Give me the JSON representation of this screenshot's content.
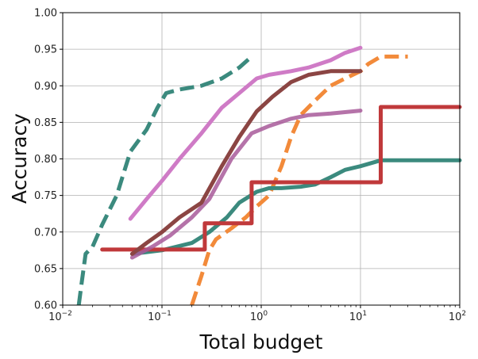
{
  "chart_data": {
    "type": "line",
    "title": "",
    "xlabel": "Total budget",
    "ylabel": "Accuracy",
    "xscale": "log",
    "xlim": [
      0.01,
      100
    ],
    "ylim": [
      0.6,
      1.0
    ],
    "grid": true,
    "x_ticks": [
      {
        "value": 0.01,
        "base": "10",
        "exp": "−2"
      },
      {
        "value": 0.1,
        "base": "10",
        "exp": "−1"
      },
      {
        "value": 1,
        "base": "10",
        "exp": "0"
      },
      {
        "value": 10,
        "base": "10",
        "exp": "1"
      },
      {
        "value": 100,
        "base": "10",
        "exp": "2"
      }
    ],
    "y_ticks": [
      {
        "value": 0.6,
        "label": "0.60"
      },
      {
        "value": 0.65,
        "label": "0.65"
      },
      {
        "value": 0.7,
        "label": "0.70"
      },
      {
        "value": 0.75,
        "label": "0.75"
      },
      {
        "value": 0.8,
        "label": "0.80"
      },
      {
        "value": 0.85,
        "label": "0.85"
      },
      {
        "value": 0.9,
        "label": "0.90"
      },
      {
        "value": 0.95,
        "label": "0.95"
      },
      {
        "value": 1.0,
        "label": "1.00"
      }
    ],
    "series": [
      {
        "color": "#3b8a7e",
        "style": "dashed",
        "opacity": 1,
        "x": [
          0.0145,
          0.0155,
          0.017,
          0.02,
          0.025,
          0.035,
          0.048,
          0.07,
          0.09,
          0.11,
          0.15,
          0.25,
          0.4,
          0.6,
          0.8
        ],
        "y": [
          0.6,
          0.63,
          0.67,
          0.68,
          0.71,
          0.75,
          0.81,
          0.84,
          0.87,
          0.89,
          0.895,
          0.9,
          0.91,
          0.925,
          0.94
        ]
      },
      {
        "color": "#f28a3a",
        "style": "dashed",
        "opacity": 1,
        "x": [
          0.2,
          0.25,
          0.3,
          0.35,
          0.5,
          0.7,
          0.9,
          1.2,
          1.6,
          2.0,
          2.5,
          3.5,
          5,
          7,
          10,
          12,
          16,
          30
        ],
        "y": [
          0.6,
          0.64,
          0.675,
          0.69,
          0.705,
          0.72,
          0.735,
          0.75,
          0.79,
          0.83,
          0.86,
          0.88,
          0.9,
          0.91,
          0.92,
          0.93,
          0.94,
          0.94
        ]
      },
      {
        "color": "#3b8a7e",
        "style": "solid",
        "opacity": 1,
        "x": [
          0.05,
          0.1,
          0.2,
          0.3,
          0.45,
          0.6,
          0.9,
          1.2,
          1.6,
          2.5,
          3.5,
          5,
          7,
          10,
          16,
          100
        ],
        "y": [
          0.67,
          0.675,
          0.685,
          0.7,
          0.72,
          0.74,
          0.755,
          0.76,
          0.76,
          0.762,
          0.765,
          0.775,
          0.785,
          0.79,
          0.798,
          0.798
        ]
      },
      {
        "color": "#c0393b",
        "style": "step",
        "opacity": 1,
        "x": [
          0.025,
          0.27,
          0.27,
          0.8,
          0.8,
          16,
          16,
          100
        ],
        "y": [
          0.676,
          0.676,
          0.712,
          0.712,
          0.768,
          0.768,
          0.871,
          0.871
        ]
      },
      {
        "color": "#a85b9a",
        "style": "solid",
        "opacity": 0.85,
        "x": [
          0.05,
          0.08,
          0.12,
          0.2,
          0.3,
          0.5,
          0.8,
          1.2,
          2,
          3,
          5,
          10
        ],
        "y": [
          0.665,
          0.68,
          0.695,
          0.72,
          0.745,
          0.8,
          0.835,
          0.845,
          0.855,
          0.86,
          0.862,
          0.866
        ]
      },
      {
        "color": "#8b4543",
        "style": "solid",
        "opacity": 1,
        "x": [
          0.05,
          0.07,
          0.1,
          0.15,
          0.25,
          0.4,
          0.6,
          0.9,
          1.3,
          2,
          3,
          5,
          10
        ],
        "y": [
          0.67,
          0.685,
          0.7,
          0.72,
          0.74,
          0.79,
          0.83,
          0.865,
          0.885,
          0.905,
          0.915,
          0.92,
          0.92
        ]
      },
      {
        "color": "#cf7bc6",
        "style": "solid",
        "opacity": 1,
        "x": [
          0.048,
          0.07,
          0.1,
          0.15,
          0.25,
          0.4,
          0.6,
          0.9,
          1.2,
          2,
          3,
          5,
          7,
          10
        ],
        "y": [
          0.718,
          0.745,
          0.77,
          0.8,
          0.835,
          0.87,
          0.89,
          0.91,
          0.915,
          0.92,
          0.925,
          0.935,
          0.945,
          0.952
        ]
      }
    ]
  }
}
